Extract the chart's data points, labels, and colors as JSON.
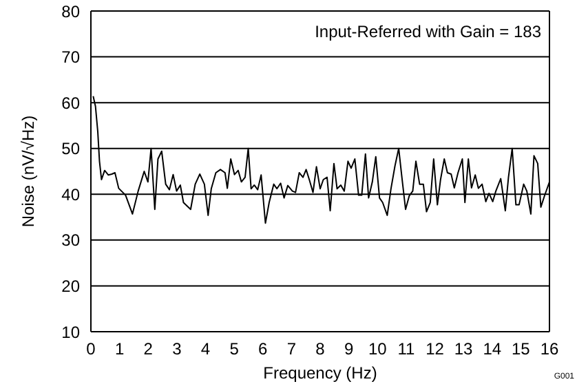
{
  "chart_data": {
    "type": "line",
    "xlabel": "Frequency (Hz)",
    "ylabel": "Noise (nV/√Hz)",
    "annotations": [
      "Input-Referred with Gain = 183",
      "G001"
    ],
    "xlim": [
      0,
      16
    ],
    "xticks": [
      0,
      1,
      2,
      3,
      4,
      5,
      6,
      7,
      8,
      9,
      10,
      11,
      12,
      13,
      14,
      15,
      16
    ],
    "ylim": [
      10,
      80
    ],
    "yticks": [
      10,
      20,
      30,
      40,
      50,
      60,
      70,
      80
    ],
    "grid": "y",
    "line_style": "solid",
    "x": [
      0.08,
      0.16,
      0.24,
      0.3,
      0.37,
      0.48,
      0.61,
      0.73,
      0.84,
      0.97,
      1.21,
      1.45,
      1.65,
      1.86,
      1.99,
      2.1,
      2.23,
      2.34,
      2.47,
      2.61,
      2.74,
      2.87,
      2.99,
      3.12,
      3.23,
      3.48,
      3.64,
      3.8,
      3.96,
      4.09,
      4.2,
      4.36,
      4.52,
      4.68,
      4.76,
      4.88,
      5.01,
      5.14,
      5.25,
      5.38,
      5.49,
      5.59,
      5.7,
      5.82,
      5.94,
      6.09,
      6.22,
      6.38,
      6.49,
      6.62,
      6.74,
      6.87,
      7.03,
      7.14,
      7.27,
      7.4,
      7.51,
      7.62,
      7.75,
      7.87,
      8,
      8.11,
      8.24,
      8.35,
      8.48,
      8.59,
      8.72,
      8.84,
      8.97,
      9.08,
      9.21,
      9.34,
      9.45,
      9.58,
      9.69,
      9.82,
      9.94,
      10.07,
      10.18,
      10.34,
      10.47,
      10.61,
      10.74,
      10.86,
      10.98,
      11.11,
      11.23,
      11.34,
      11.47,
      11.6,
      11.71,
      11.84,
      11.96,
      12.09,
      12.2,
      12.33,
      12.44,
      12.57,
      12.68,
      12.81,
      12.96,
      13.05,
      13.17,
      13.28,
      13.41,
      13.52,
      13.65,
      13.78,
      13.89,
      14.02,
      14.13,
      14.3,
      14.46,
      14.57,
      14.7,
      14.83,
      14.94,
      15.1,
      15.21,
      15.35,
      15.46,
      15.59,
      15.7,
      15.83,
      16
    ],
    "series": [
      {
        "color": "#000000",
        "values": [
          61.4,
          59.2,
          53.7,
          47.2,
          43.2,
          45.2,
          44.2,
          44.4,
          44.7,
          41.3,
          39.8,
          35.7,
          40.7,
          45,
          42.7,
          50,
          36.7,
          47.7,
          49.4,
          42.2,
          41,
          44.3,
          40.7,
          42,
          38.2,
          36.7,
          42.2,
          44.4,
          42.2,
          35.4,
          41.2,
          44.7,
          45.4,
          44.7,
          41.3,
          47.7,
          44.3,
          45.2,
          42.7,
          43.7,
          50,
          41.2,
          42,
          41,
          44.2,
          33.7,
          38.2,
          42.2,
          41.2,
          42.4,
          39.2,
          41.9,
          40.7,
          40.4,
          44.7,
          43.7,
          45.4,
          43.2,
          40.4,
          46,
          41.2,
          43.2,
          43.7,
          36.4,
          46.7,
          41.2,
          42,
          40.7,
          47.2,
          45.7,
          47.7,
          39.8,
          39.8,
          48.8,
          39.2,
          42.7,
          48.2,
          39.2,
          38.2,
          35.4,
          41.2,
          46.2,
          50,
          43.2,
          36.7,
          39.7,
          40.7,
          47.2,
          42.2,
          42.2,
          36.2,
          38.2,
          47.7,
          37.7,
          43.2,
          47.7,
          44.7,
          44.4,
          41.4,
          44.7,
          47.7,
          38.2,
          47.7,
          41.4,
          44.2,
          41.3,
          42.2,
          38.4,
          40.2,
          38.4,
          40.7,
          43.4,
          36.4,
          43.7,
          50,
          37.7,
          37.7,
          42.2,
          40.7,
          35.7,
          48.4,
          46.7,
          37.2,
          39.7,
          42.7
        ]
      }
    ]
  }
}
